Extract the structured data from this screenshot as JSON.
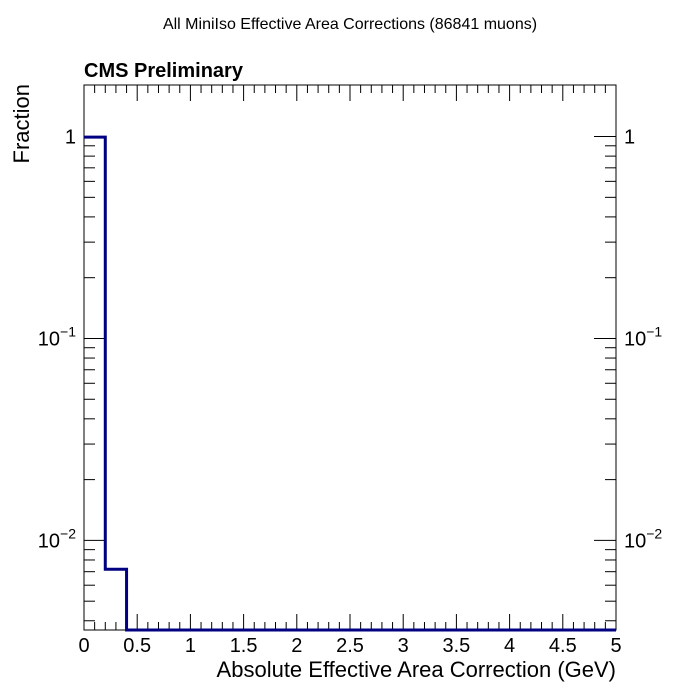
{
  "chart_data": {
    "type": "histogram",
    "title": "All MiniIso Effective Area Corrections (86841 muons)",
    "annotation": "CMS Preliminary",
    "xlabel": "Absolute Effective Area Correction (GeV)",
    "ylabel": "Fraction",
    "xlim": [
      0,
      5
    ],
    "ylim": [
      0.0036,
      1.8
    ],
    "y_scale": "log",
    "line_color": "#000080",
    "x_tick_labels": [
      "0",
      "0.5",
      "1",
      "1.5",
      "2",
      "2.5",
      "3",
      "3.5",
      "4",
      "4.5",
      "5"
    ],
    "y_ticks": [
      {
        "value": 1,
        "base": "1",
        "exp": ""
      },
      {
        "value": 0.1,
        "base": "10",
        "exp": "−1"
      },
      {
        "value": 0.01,
        "base": "10",
        "exp": "−2"
      }
    ],
    "bins": [
      {
        "x_low": 0.0,
        "x_high": 0.2,
        "value": 0.993
      },
      {
        "x_low": 0.2,
        "x_high": 0.4,
        "value": 0.0072
      },
      {
        "x_low": 0.4,
        "x_high": 5.0,
        "value": 0
      }
    ],
    "grid": false,
    "legend": "none"
  }
}
